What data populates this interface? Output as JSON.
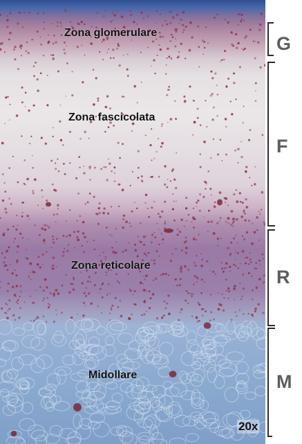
{
  "labels": {
    "glomerulosa": "Zona glomerulare",
    "fasciculata": "Zona fascicolata",
    "reticularis": "Zona reticolare",
    "medulla": "Midollare"
  },
  "zone_letters": {
    "g": "G",
    "f": "F",
    "r": "R",
    "m": "M"
  },
  "magnification": "20x",
  "colors": {
    "capsule": "#2f4f93",
    "glomerulosa": "#a8819f",
    "fasciculata": "#ebe7e8",
    "reticularis": "#9a7aa5",
    "medulla": "#8aa9cf",
    "nuclei": "#8c2f45"
  }
}
